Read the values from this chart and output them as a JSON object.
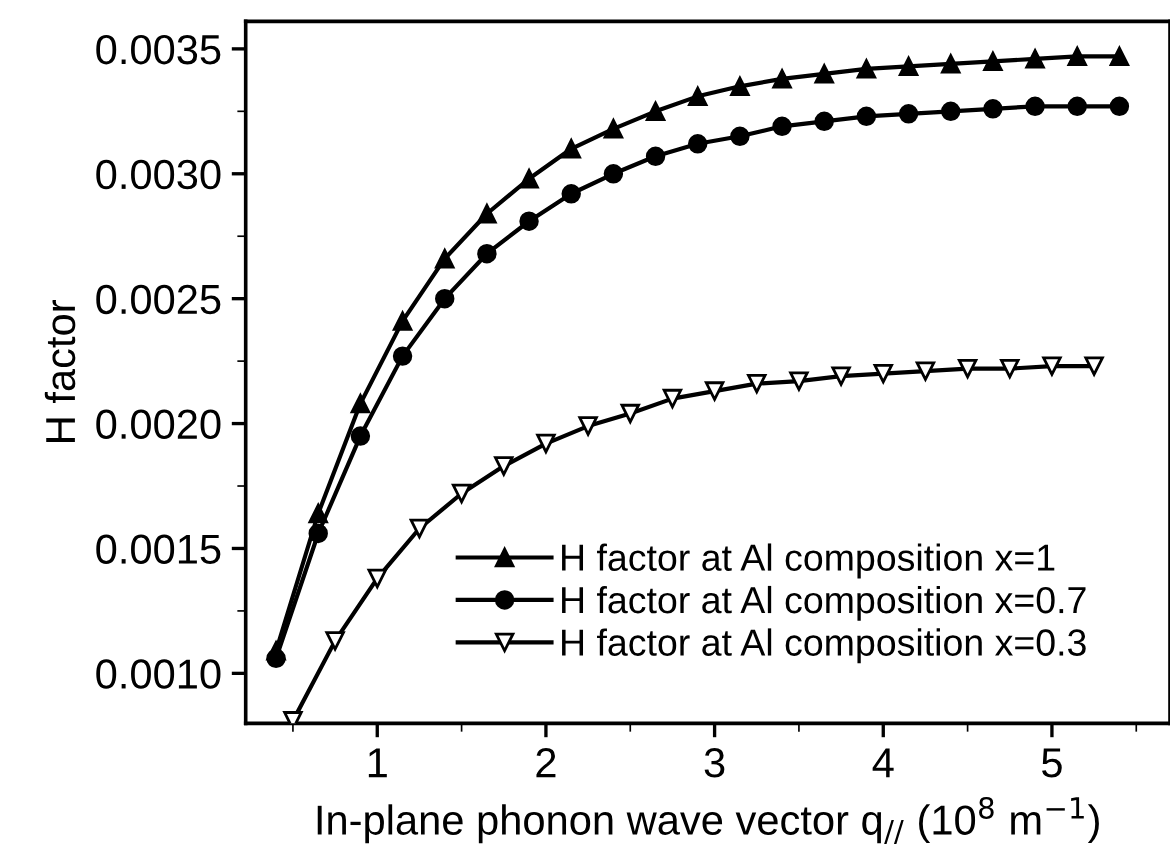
{
  "chart_data": {
    "type": "line",
    "xlabel": "In-plane phonon wave vector q$_{//}$ (10$^{8}$ m$^{−1}$)",
    "ylabel": "H factor",
    "xlim": [
      0.22,
      5.7
    ],
    "xticks": [
      1,
      2,
      3,
      4,
      5
    ],
    "ylim": [
      0.0008,
      0.00361
    ],
    "yticks": [
      {
        "value": 0.001,
        "label": "0.0010"
      },
      {
        "value": 0.0015,
        "label": "0.0015"
      },
      {
        "value": 0.002,
        "label": "0.0020"
      },
      {
        "value": 0.0025,
        "label": "0.0025"
      },
      {
        "value": 0.003,
        "label": "0.0030"
      },
      {
        "value": 0.0035,
        "label": "0.0035"
      }
    ],
    "grid": false,
    "legend": "bottom",
    "line_style": "solid",
    "series": [
      {
        "name": "H factor at Al composition x=1",
        "color": "#000000",
        "marker": "triangle",
        "x": [
          0.4,
          0.65,
          0.9,
          1.15,
          1.4,
          1.65,
          1.9,
          2.15,
          2.4,
          2.65,
          2.9,
          3.15,
          3.4,
          3.65,
          3.9,
          4.15,
          4.4,
          4.65,
          4.9,
          5.15,
          5.4
        ],
        "values": [
          0.00109,
          0.00164,
          0.00208,
          0.00241,
          0.00266,
          0.00284,
          0.00298,
          0.0031,
          0.00318,
          0.00325,
          0.00331,
          0.00335,
          0.00338,
          0.0034,
          0.00342,
          0.00343,
          0.00344,
          0.00345,
          0.00346,
          0.00347,
          0.00347
        ]
      },
      {
        "name": "H factor at Al composition x=0.7",
        "color": "#000000",
        "marker": "circle",
        "x": [
          0.4,
          0.65,
          0.9,
          1.15,
          1.4,
          1.65,
          1.9,
          2.15,
          2.4,
          2.65,
          2.9,
          3.15,
          3.4,
          3.65,
          3.9,
          4.15,
          4.4,
          4.65,
          4.9,
          5.15,
          5.4
        ],
        "values": [
          0.00106,
          0.00156,
          0.00195,
          0.00227,
          0.0025,
          0.00268,
          0.00281,
          0.00292,
          0.003,
          0.00307,
          0.00312,
          0.00315,
          0.00319,
          0.00321,
          0.00323,
          0.00324,
          0.00325,
          0.00326,
          0.00327,
          0.00327,
          0.00327
        ]
      },
      {
        "name": "H factor at Al composition x=0.3",
        "color": "#000000",
        "marker": "triangle_down",
        "x": [
          0.5,
          0.75,
          1.0,
          1.25,
          1.5,
          1.75,
          2.0,
          2.25,
          2.5,
          2.75,
          3.0,
          3.25,
          3.5,
          3.75,
          4.0,
          4.25,
          4.5,
          4.75,
          5.0,
          5.25
        ],
        "values": [
          0.00081,
          0.00113,
          0.00138,
          0.00158,
          0.00172,
          0.00183,
          0.00192,
          0.00199,
          0.00204,
          0.0021,
          0.00213,
          0.00216,
          0.00217,
          0.00219,
          0.0022,
          0.00221,
          0.00222,
          0.00222,
          0.00223,
          0.00223
        ]
      }
    ]
  }
}
